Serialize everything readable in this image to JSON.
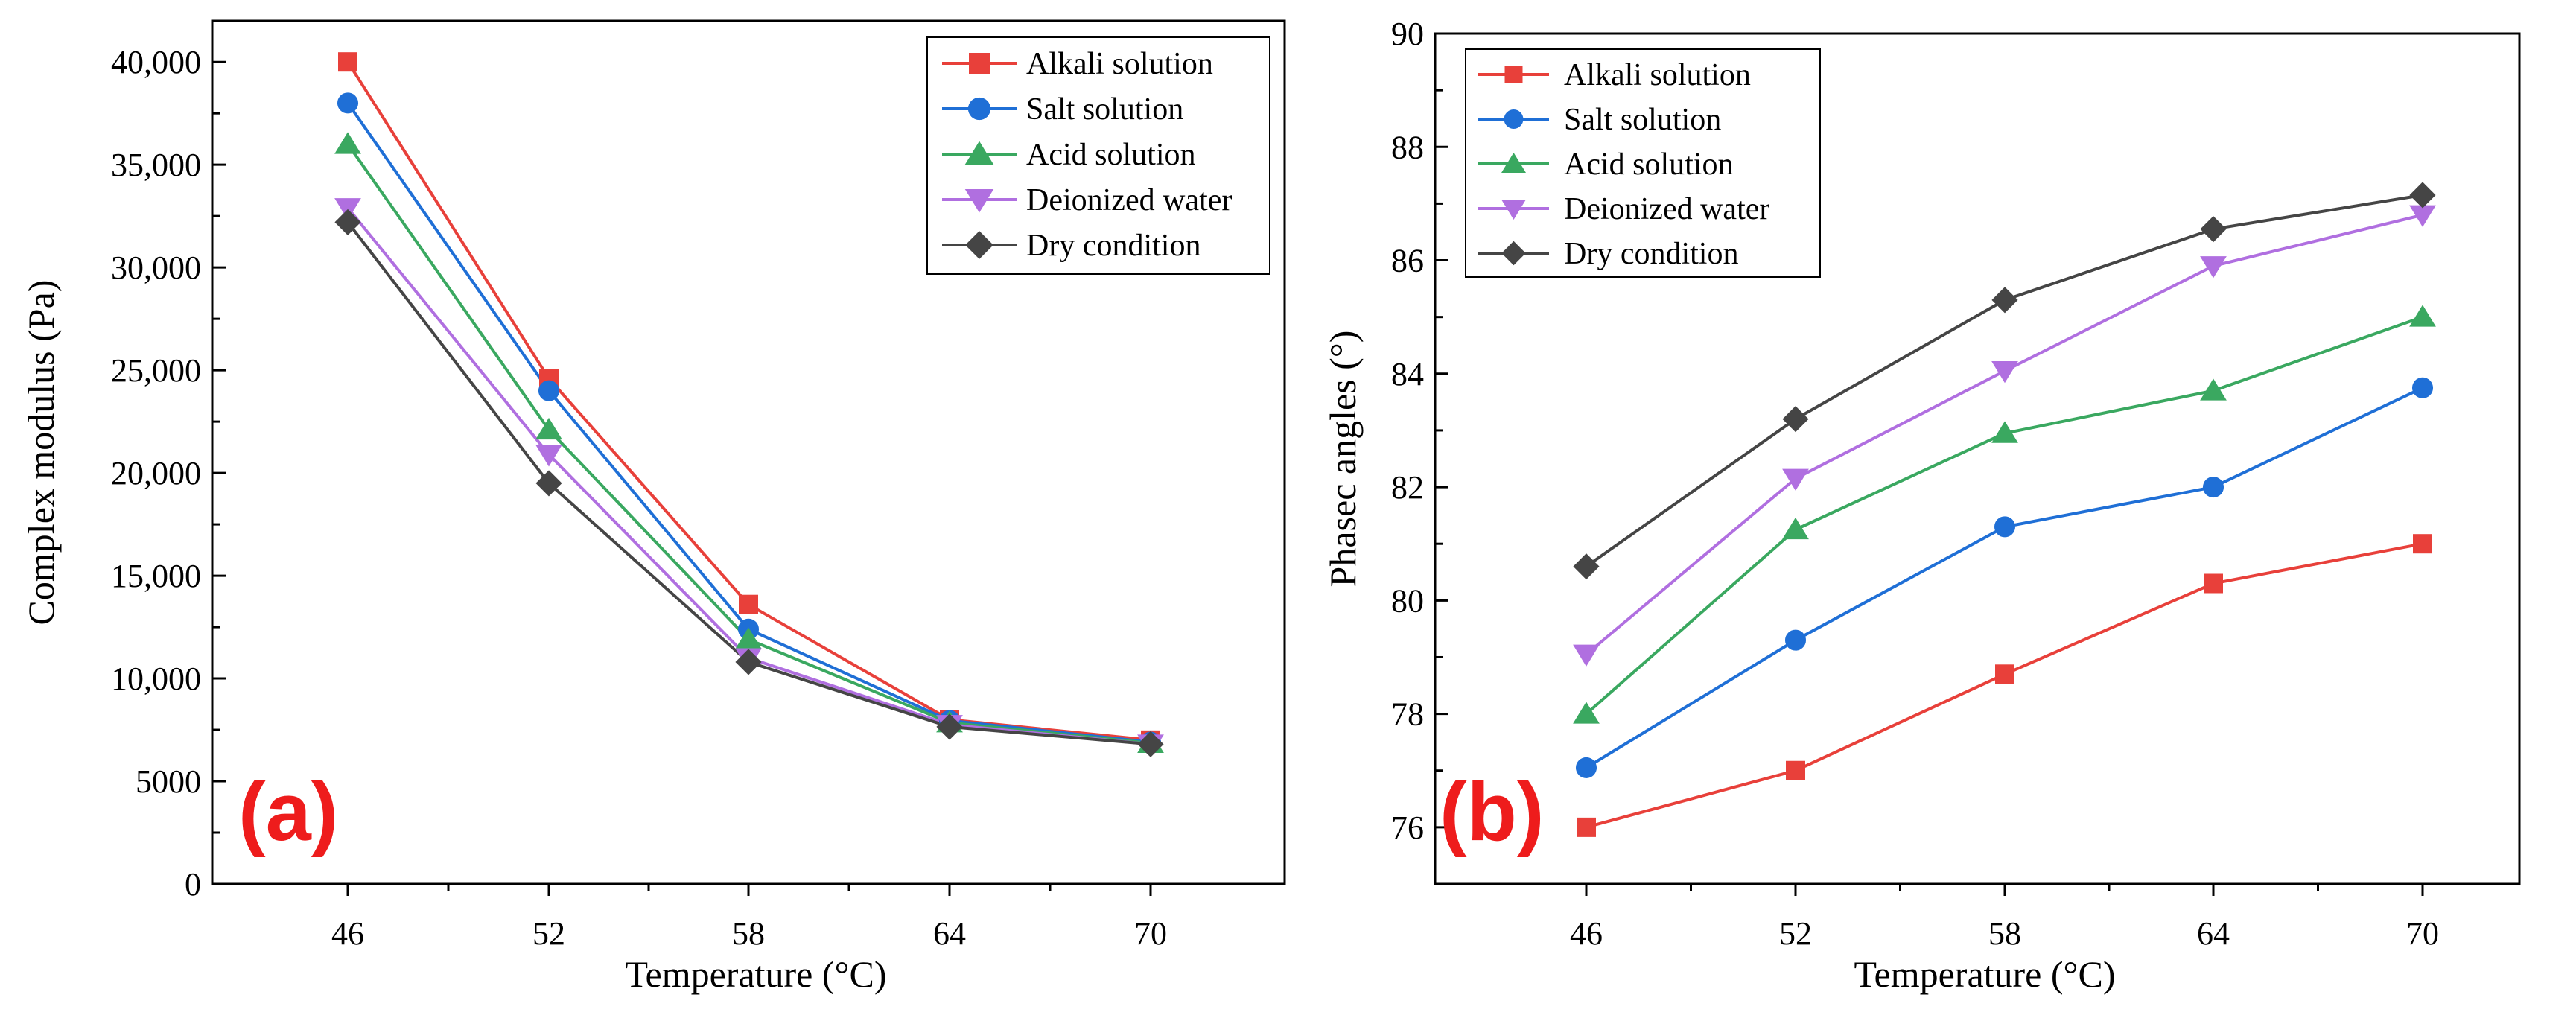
{
  "charts": [
    {
      "type": "line",
      "panel_label": "(a)",
      "xlabel": "Temperature (°C)",
      "ylabel": "Complex modulus (Pa)",
      "categories": [
        "46",
        "52",
        "58",
        "64",
        "70"
      ],
      "ylim": [
        0,
        42000
      ],
      "yticks": [
        0,
        5000,
        10000,
        15000,
        20000,
        25000,
        30000,
        35000,
        40000
      ],
      "ytick_labels": [
        "0",
        "5000",
        "10,000",
        "15,000",
        "20,000",
        "25,000",
        "30,000",
        "35,000",
        "40,000"
      ],
      "legend_position": "top-right",
      "grid": false,
      "series": [
        {
          "name": "Alkali solution",
          "color": "#e8403a",
          "marker": "square",
          "values": [
            40000,
            24600,
            13600,
            8000,
            7000
          ]
        },
        {
          "name": "Salt solution",
          "color": "#1f6fd6",
          "marker": "circle",
          "values": [
            38000,
            24000,
            12400,
            7950,
            6900
          ]
        },
        {
          "name": "Acid solution",
          "color": "#3aa860",
          "marker": "triangle-up",
          "values": [
            36000,
            22100,
            11900,
            7850,
            6850
          ]
        },
        {
          "name": "Deionized water",
          "color": "#b06fe0",
          "marker": "triangle-down",
          "values": [
            32900,
            20900,
            11000,
            7750,
            6800
          ]
        },
        {
          "name": "Dry condition",
          "color": "#454545",
          "marker": "diamond",
          "values": [
            32200,
            19500,
            10800,
            7650,
            6800
          ]
        }
      ]
    },
    {
      "type": "line",
      "panel_label": "(b)",
      "xlabel": "Temperature (°C)",
      "ylabel": "Phasec angles (°)",
      "categories": [
        "46",
        "52",
        "58",
        "64",
        "70"
      ],
      "ylim": [
        75,
        90
      ],
      "yticks": [
        76,
        78,
        80,
        82,
        84,
        86,
        88,
        90
      ],
      "ytick_labels": [
        "76",
        "78",
        "80",
        "82",
        "84",
        "86",
        "88",
        "90"
      ],
      "legend_position": "top-left",
      "grid": false,
      "series": [
        {
          "name": "Alkali solution",
          "color": "#e8403a",
          "marker": "square",
          "values": [
            76.0,
            77.0,
            78.7,
            80.3,
            81.0
          ]
        },
        {
          "name": "Salt solution",
          "color": "#1f6fd6",
          "marker": "circle",
          "values": [
            77.05,
            79.3,
            81.3,
            82.0,
            83.75
          ]
        },
        {
          "name": "Acid solution",
          "color": "#3aa860",
          "marker": "triangle-up",
          "values": [
            78.0,
            81.25,
            82.95,
            83.7,
            85.0
          ]
        },
        {
          "name": "Deionized water",
          "color": "#b06fe0",
          "marker": "triangle-down",
          "values": [
            79.05,
            82.15,
            84.05,
            85.9,
            86.8
          ]
        },
        {
          "name": "Dry condition",
          "color": "#454545",
          "marker": "diamond",
          "values": [
            80.6,
            83.2,
            85.3,
            86.55,
            87.15
          ]
        }
      ]
    }
  ]
}
